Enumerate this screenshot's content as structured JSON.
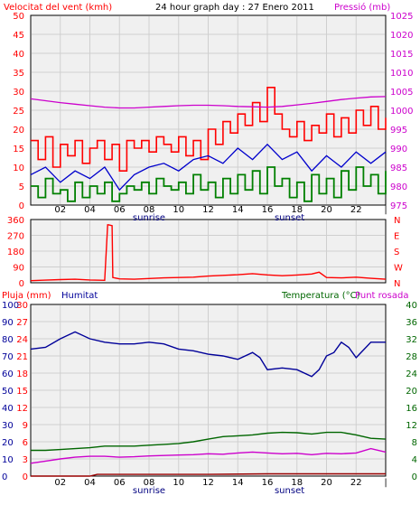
{
  "header": {
    "wind_label": "Velocitat del vent (kmh)",
    "title": "24 hour graph day : 27 Enero 2011",
    "pressure_label": "Pressió (mb)"
  },
  "lower_header": {
    "rain_label": "Pluja (mm)",
    "humidity_label": "Humitat",
    "temp_label": "Temperatura (°C)",
    "dew_label": "Punt rosada"
  },
  "colors": {
    "wind_gust": "#ff0000",
    "wind_avg": "#0000cc",
    "wind_low": "#008000",
    "pressure": "#cc00cc",
    "direction": "#ff0000",
    "humidity": "#000099",
    "temperature": "#006600",
    "dew": "#cc00cc",
    "rain": "#990000",
    "plot_bg": "#f0f0f0",
    "gridline": "#cfcfcf"
  },
  "x_ticks": [
    "02",
    "04",
    "06",
    "08",
    "10",
    "12",
    "14",
    "16",
    "18",
    "20",
    "22",
    "|"
  ],
  "sunrise_label": "sunrise",
  "sunset_label": "sunset",
  "chart_data": [
    {
      "type": "line",
      "name": "wind-and-pressure",
      "title": "24 hour graph day : 27 Enero 2011",
      "ylabel": "Velocitat del vent (kmh)",
      "y2label": "Pressió (mb)",
      "ylim": [
        0,
        50
      ],
      "y2lim": [
        975,
        1025
      ],
      "yticks": [
        0,
        5,
        10,
        15,
        20,
        25,
        30,
        35,
        40,
        45,
        50
      ],
      "y2ticks": [
        975,
        980,
        985,
        990,
        995,
        1000,
        1005,
        1010,
        1015,
        1020,
        1025
      ],
      "xlim": [
        0,
        24
      ],
      "series": [
        {
          "key": "gust",
          "x": [
            0,
            0.5,
            1,
            1.5,
            2,
            2.5,
            3,
            3.5,
            4,
            4.5,
            5,
            5.5,
            6,
            6.5,
            7,
            7.5,
            8,
            8.5,
            9,
            9.5,
            10,
            10.5,
            11,
            11.5,
            12,
            12.5,
            13,
            13.5,
            14,
            14.5,
            15,
            15.5,
            16,
            16.5,
            17,
            17.5,
            18,
            18.5,
            19,
            19.5,
            20,
            20.5,
            21,
            21.5,
            22,
            22.5,
            23,
            23.5,
            24
          ],
          "values": [
            17,
            12,
            18,
            10,
            16,
            13,
            17,
            11,
            15,
            17,
            12,
            16,
            9,
            17,
            15,
            17,
            14,
            18,
            16,
            14,
            18,
            13,
            17,
            12,
            20,
            16,
            22,
            19,
            24,
            21,
            27,
            22,
            31,
            24,
            20,
            18,
            22,
            17,
            21,
            19,
            24,
            18,
            23,
            19,
            25,
            21,
            26,
            20,
            23
          ]
        },
        {
          "key": "average",
          "x": [
            0,
            1,
            2,
            3,
            4,
            5,
            6,
            7,
            8,
            9,
            10,
            11,
            12,
            13,
            14,
            15,
            16,
            17,
            18,
            19,
            20,
            21,
            22,
            23,
            24
          ],
          "values": [
            8,
            10,
            6,
            9,
            7,
            10,
            4,
            8,
            10,
            11,
            9,
            12,
            13,
            11,
            15,
            12,
            16,
            12,
            14,
            9,
            13,
            10,
            14,
            11,
            14
          ]
        },
        {
          "key": "low",
          "x": [
            0,
            0.5,
            1,
            1.5,
            2,
            2.5,
            3,
            3.5,
            4,
            4.5,
            5,
            5.5,
            6,
            6.5,
            7,
            7.5,
            8,
            8.5,
            9,
            9.5,
            10,
            10.5,
            11,
            11.5,
            12,
            12.5,
            13,
            13.5,
            14,
            14.5,
            15,
            15.5,
            16,
            16.5,
            17,
            17.5,
            18,
            18.5,
            19,
            19.5,
            20,
            20.5,
            21,
            21.5,
            22,
            22.5,
            23,
            23.5,
            24
          ],
          "values": [
            5,
            2,
            7,
            3,
            4,
            1,
            6,
            2,
            5,
            3,
            6,
            1,
            3,
            5,
            4,
            6,
            3,
            7,
            5,
            4,
            6,
            3,
            8,
            4,
            6,
            2,
            7,
            3,
            8,
            4,
            9,
            3,
            10,
            5,
            7,
            2,
            6,
            1,
            8,
            3,
            7,
            2,
            9,
            4,
            10,
            5,
            8,
            3,
            9
          ]
        },
        {
          "key": "pressure",
          "x": [
            0,
            1,
            2,
            3,
            4,
            5,
            6,
            7,
            8,
            9,
            10,
            11,
            12,
            13,
            14,
            15,
            16,
            17,
            18,
            19,
            20,
            21,
            22,
            23,
            24
          ],
          "values": [
            1003,
            1002.5,
            1002,
            1001.6,
            1001.2,
            1000.8,
            1000.6,
            1000.6,
            1000.8,
            1001.0,
            1001.2,
            1001.3,
            1001.3,
            1001.2,
            1001.0,
            1000.9,
            1000.8,
            1001.0,
            1001.4,
            1001.8,
            1002.3,
            1002.8,
            1003.2,
            1003.5,
            1003.6
          ]
        }
      ]
    },
    {
      "type": "line",
      "name": "wind-direction",
      "ylim": [
        0,
        360
      ],
      "yticks": [
        0,
        90,
        180,
        270,
        360
      ],
      "right_labels": [
        "N",
        "W",
        "S",
        "E",
        "N"
      ],
      "xlim": [
        0,
        24
      ],
      "series": [
        {
          "key": "direction",
          "x": [
            0,
            1,
            2,
            3,
            4,
            5,
            5.2,
            5.25,
            5.5,
            5.55,
            6,
            7,
            8,
            9,
            10,
            11,
            12,
            13,
            14,
            15,
            16,
            17,
            18,
            19,
            19.5,
            20,
            21,
            22,
            23,
            24
          ],
          "values": [
            12,
            15,
            18,
            20,
            16,
            14,
            330,
            330,
            325,
            30,
            22,
            20,
            24,
            28,
            30,
            32,
            38,
            42,
            46,
            52,
            45,
            40,
            44,
            50,
            60,
            30,
            28,
            32,
            25,
            20
          ]
        }
      ]
    },
    {
      "type": "line",
      "name": "rain-humidity-temperature",
      "ylabel": "Pluja (mm)",
      "ylim": [
        0,
        30
      ],
      "yticks": [
        0,
        3,
        6,
        9,
        12,
        15,
        18,
        21,
        24,
        27,
        30
      ],
      "humidity_ticks": [
        0,
        10,
        20,
        30,
        40,
        50,
        60,
        70,
        80,
        90,
        100
      ],
      "y2lim": [
        0,
        40
      ],
      "y2ticks": [
        0,
        4,
        8,
        12,
        16,
        20,
        24,
        28,
        32,
        36,
        40
      ],
      "xlim": [
        0,
        24
      ],
      "series": [
        {
          "key": "humidity",
          "x": [
            0,
            1,
            2,
            3,
            4,
            5,
            6,
            7,
            8,
            9,
            10,
            11,
            12,
            13,
            14,
            15,
            15.5,
            16,
            17,
            18,
            19,
            19.5,
            20,
            20.5,
            21,
            21.5,
            22,
            23,
            24
          ],
          "values": [
            74,
            75,
            80,
            84,
            80,
            78,
            77,
            77,
            78,
            77,
            74,
            73,
            71,
            70,
            68,
            72,
            69,
            62,
            63,
            62,
            58,
            62,
            70,
            72,
            78,
            75,
            69,
            78,
            78
          ]
        },
        {
          "key": "temperature",
          "x": [
            0,
            1,
            2,
            3,
            4,
            5,
            6,
            7,
            8,
            9,
            10,
            11,
            12,
            13,
            14,
            15,
            16,
            17,
            18,
            19,
            20,
            21,
            22,
            23,
            24
          ],
          "values": [
            6.0,
            6.0,
            6.2,
            6.4,
            6.6,
            7.0,
            7.0,
            7.0,
            7.2,
            7.4,
            7.6,
            8.0,
            8.6,
            9.2,
            9.4,
            9.6,
            10.0,
            10.2,
            10.1,
            9.8,
            10.2,
            10.2,
            9.6,
            8.8,
            8.6
          ]
        },
        {
          "key": "dew",
          "x": [
            0,
            1,
            2,
            3,
            4,
            5,
            6,
            7,
            8,
            9,
            10,
            11,
            12,
            13,
            14,
            15,
            16,
            17,
            18,
            19,
            20,
            21,
            22,
            23,
            24
          ],
          "values": [
            3.0,
            3.5,
            4.0,
            4.4,
            4.6,
            4.6,
            4.4,
            4.5,
            4.7,
            4.8,
            4.9,
            5.0,
            5.2,
            5.1,
            5.4,
            5.6,
            5.4,
            5.2,
            5.3,
            5.0,
            5.3,
            5.2,
            5.4,
            6.4,
            5.6
          ]
        },
        {
          "key": "rain",
          "x": [
            0,
            4,
            4.5,
            12,
            16,
            20,
            24
          ],
          "values": [
            0,
            0,
            0.3,
            0.3,
            0.4,
            0.4,
            0.4
          ]
        }
      ]
    }
  ]
}
